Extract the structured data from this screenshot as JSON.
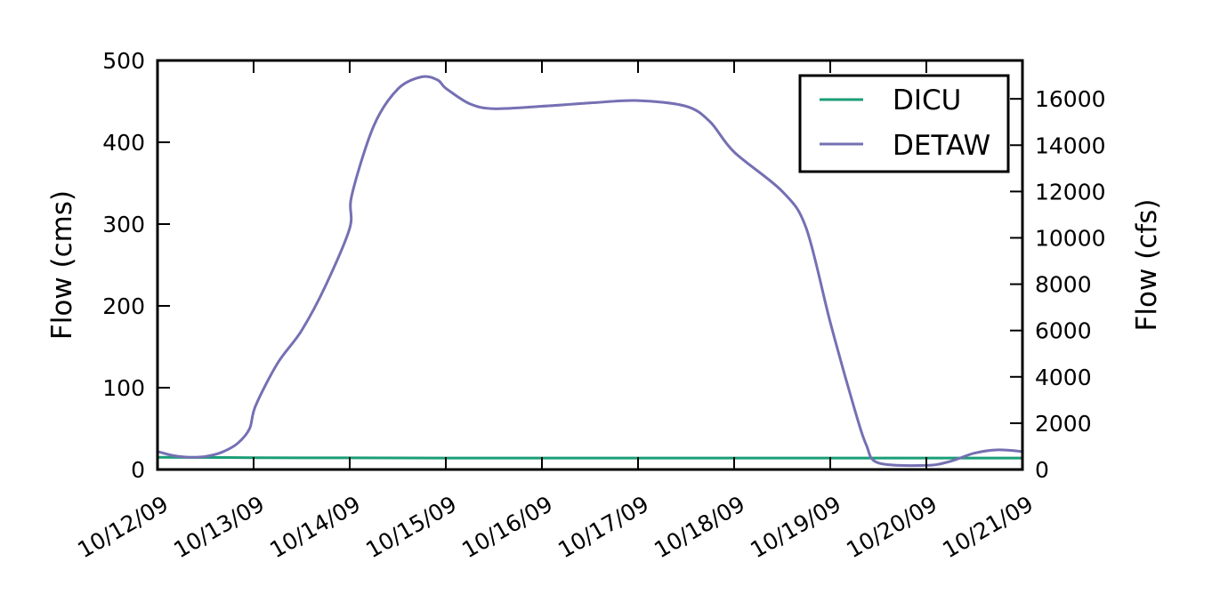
{
  "chart_data": {
    "type": "line",
    "title": "",
    "xlabel": "",
    "ylabel": "Flow (cms)",
    "ylabel_right": "Flow (cfs)",
    "xlim": [
      "10/12/09",
      "10/21/09"
    ],
    "ylim": [
      0,
      500
    ],
    "ylim_right": [
      0,
      17657
    ],
    "x_ticks": [
      "10/12/09",
      "10/13/09",
      "10/14/09",
      "10/15/09",
      "10/16/09",
      "10/17/09",
      "10/18/09",
      "10/19/09",
      "10/20/09",
      "10/21/09"
    ],
    "y_ticks": [
      "0",
      "100",
      "200",
      "300",
      "400",
      "500"
    ],
    "y_ticks_right": [
      "0",
      "2000",
      "4000",
      "6000",
      "8000",
      "10000",
      "12000",
      "14000",
      "16000"
    ],
    "grid": false,
    "legend_position": "top-right",
    "series": [
      {
        "name": "DICU",
        "color": "#1b9e77",
        "axis": "left",
        "x": [
          "10/12/09",
          "10/13/09",
          "10/14/09",
          "10/15/09",
          "10/16/09",
          "10/17/09",
          "10/18/09",
          "10/19/09",
          "10/20/09",
          "10/21/09"
        ],
        "y": [
          15,
          14.5,
          14.2,
          14,
          14,
          14,
          14,
          14,
          14,
          14
        ]
      },
      {
        "name": "DETAW",
        "color": "#7570b3",
        "axis": "left",
        "x": [
          "10/12/09 00:00",
          "10/12/09 04:00",
          "10/12/09 08:00",
          "10/12/09 12:00",
          "10/12/09 16:00",
          "10/12/09 20:00",
          "10/12/09 23:00",
          "10/13/09 00:30",
          "10/13/09 06:00",
          "10/13/09 12:00",
          "10/13/09 18:00",
          "10/14/09 00:00",
          "10/14/09 00:30",
          "10/14/09 06:00",
          "10/14/09 12:00",
          "10/14/09 18:00",
          "10/14/09 22:00",
          "10/15/09 00:00",
          "10/15/09 06:00",
          "10/15/09 12:00",
          "10/16/09 00:00",
          "10/16/09 12:00",
          "10/17/09 00:00",
          "10/17/09 12:00",
          "10/17/09 18:00",
          "10/18/09 00:00",
          "10/18/09 12:00",
          "10/18/09 18:00",
          "10/19/09 00:00",
          "10/19/09 06:00",
          "10/19/09 09:00",
          "10/19/09 12:00",
          "10/20/09 00:00",
          "10/20/09 06:00",
          "10/20/09 12:00",
          "10/20/09 18:00",
          "10/21/09 00:00"
        ],
        "y": [
          22,
          17,
          15,
          16,
          21,
          32,
          50,
          78,
          130,
          170,
          225,
          295,
          335,
          420,
          465,
          480,
          476,
          466,
          447,
          441,
          444,
          448,
          451,
          444,
          425,
          388,
          340,
          295,
          180,
          75,
          30,
          8,
          5,
          10,
          20,
          24,
          22
        ]
      }
    ]
  }
}
